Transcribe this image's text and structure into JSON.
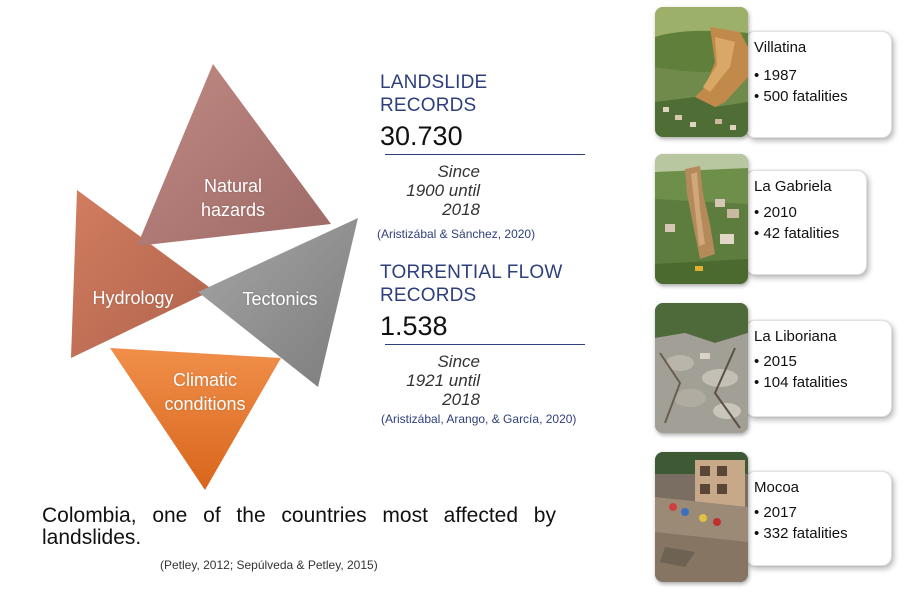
{
  "triangles": {
    "natural_hazards": {
      "label": "Natural\nhazards",
      "color": "#b07670"
    },
    "hydrology": {
      "label": "Hydrology",
      "color": "#c77056"
    },
    "tectonics": {
      "label": "Tectonics",
      "color": "#8c8c8c"
    },
    "climatic": {
      "label": "Climatic\nconditions",
      "color": "#e8752a"
    }
  },
  "records": [
    {
      "title": "LANDSLIDE\nRECORDS",
      "value": "30.730",
      "since": "Since\n1900 until\n2018",
      "citation": "(Aristizábal & Sánchez, 2020)"
    },
    {
      "title": "TORRENTIAL FLOW\nRECORDS",
      "value": "1.538",
      "since": "Since\n1921 until\n2018",
      "citation": "(Aristizábal, Arango, & García, 2020)"
    }
  ],
  "summary": {
    "text": "Colombia, one of the countries most affected by landslides.",
    "citation": "(Petley, 2012; Sepúlveda & Petley, 2015)"
  },
  "events": [
    {
      "name": "Villatina",
      "year": "• 1987",
      "fatalities": "• 500 fatalities",
      "photo": "landslide-scar-photo"
    },
    {
      "name": "La Gabriela",
      "year": "• 2010",
      "fatalities": "• 42 fatalities",
      "photo": "landslide-hillside-photo"
    },
    {
      "name": "La Liboriana",
      "year": "• 2015",
      "fatalities": "• 104 fatalities",
      "photo": "debris-flow-photo"
    },
    {
      "name": "Mocoa",
      "year": "• 2017",
      "fatalities": "• 332 fatalities",
      "photo": "flood-damage-photo"
    }
  ],
  "colors": {
    "accent_blue": "#2e3f7c",
    "rule": "#2e3f7c"
  }
}
